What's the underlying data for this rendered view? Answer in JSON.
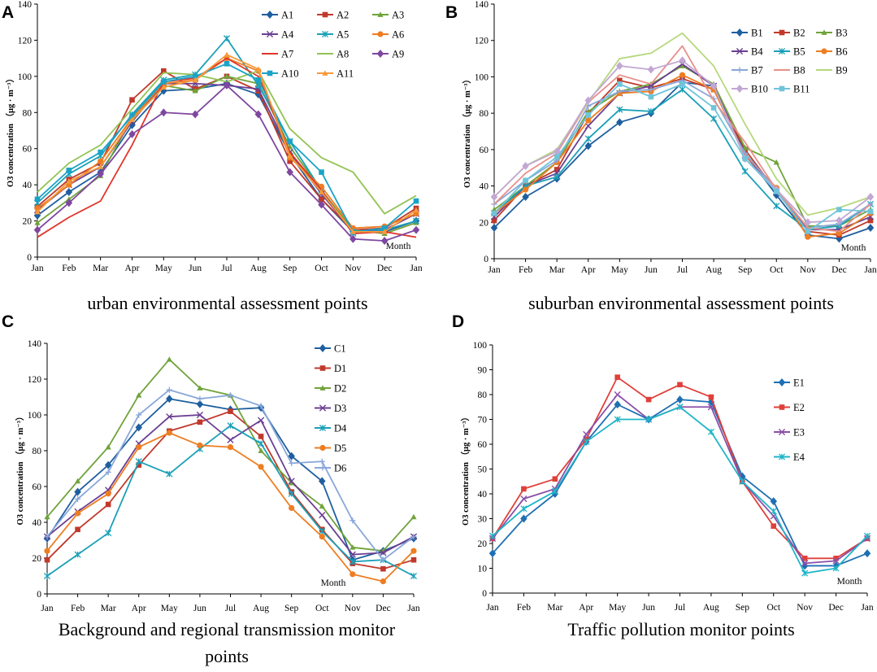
{
  "figure": {
    "background": "#ffffff",
    "axis_color": "#000000",
    "panels": [
      "A",
      "B",
      "C",
      "D"
    ]
  },
  "chart_data": [
    {
      "panel": "A",
      "type": "line",
      "title": "urban environmental assessment points",
      "ylabel": "O3 concentration （μg · m⁻³）",
      "xlabel": "Month",
      "categories": [
        "Jan",
        "Feb",
        "Mar",
        "Apr",
        "May",
        "Jun",
        "Jul",
        "Aug",
        "Sep",
        "Oct",
        "Nov",
        "Dec",
        "Jan"
      ],
      "ylim": [
        0,
        140
      ],
      "yticks": [
        0,
        20,
        40,
        60,
        80,
        100,
        120,
        140
      ],
      "legend_columns": 3,
      "legend_position": "top-right",
      "series": [
        {
          "name": "A1",
          "color": "#1f5fa0",
          "marker": "diamond",
          "values": [
            23,
            36,
            47,
            73,
            92,
            93,
            96,
            90,
            57,
            32,
            14,
            14,
            20
          ]
        },
        {
          "name": "A2",
          "color": "#c0392b",
          "marker": "square",
          "values": [
            28,
            43,
            52,
            87,
            103,
            93,
            100,
            92,
            53,
            32,
            15,
            16,
            27
          ]
        },
        {
          "name": "A3",
          "color": "#70a33a",
          "marker": "triangle",
          "values": [
            19,
            32,
            45,
            77,
            95,
            92,
            100,
            96,
            61,
            37,
            15,
            13,
            19
          ]
        },
        {
          "name": "A4",
          "color": "#6b3f92",
          "marker": "x",
          "values": [
            26,
            40,
            50,
            75,
            96,
            96,
            95,
            93,
            58,
            35,
            14,
            15,
            24
          ]
        },
        {
          "name": "A5",
          "color": "#1aa0b8",
          "marker": "star",
          "values": [
            30,
            46,
            56,
            79,
            98,
            101,
            121,
            95,
            64,
            37,
            13,
            15,
            20
          ]
        },
        {
          "name": "A6",
          "color": "#ee7d22",
          "marker": "circle",
          "values": [
            27,
            40,
            53,
            77,
            96,
            98,
            110,
            103,
            55,
            39,
            16,
            17,
            24
          ]
        },
        {
          "name": "A7",
          "color": "#e0352b",
          "marker": "none",
          "values": [
            11,
            22,
            31,
            62,
            97,
            99,
            110,
            100,
            58,
            37,
            13,
            14,
            11
          ]
        },
        {
          "name": "A8",
          "color": "#92c353",
          "marker": "none",
          "values": [
            36,
            52,
            62,
            82,
            102,
            101,
            97,
            103,
            71,
            55,
            47,
            24,
            34
          ]
        },
        {
          "name": "A9",
          "color": "#7f47a0",
          "marker": "diamond",
          "values": [
            15,
            30,
            46,
            68,
            80,
            79,
            95,
            79,
            47,
            29,
            10,
            9,
            15
          ]
        },
        {
          "name": "A10",
          "color": "#1aa3c7",
          "marker": "square",
          "values": [
            32,
            48,
            58,
            78,
            97,
            100,
            107,
            98,
            64,
            47,
            14,
            16,
            31
          ]
        },
        {
          "name": "A11",
          "color": "#f79a3a",
          "marker": "triangle",
          "values": [
            25,
            42,
            50,
            76,
            94,
            98,
            112,
            104,
            56,
            36,
            14,
            14,
            26
          ]
        }
      ]
    },
    {
      "panel": "B",
      "type": "line",
      "title": "suburban environmental assessment points",
      "ylabel": "O3 concentration （μg · m⁻³）",
      "xlabel": "Month",
      "categories": [
        "Jan",
        "Feb",
        "Mar",
        "Apr",
        "May",
        "Jun",
        "Jul",
        "Aug",
        "Sep",
        "Oct",
        "Nov",
        "Dec",
        "Jan"
      ],
      "ylim": [
        0,
        140
      ],
      "yticks": [
        0,
        20,
        40,
        60,
        80,
        100,
        120,
        140
      ],
      "legend_columns": 3,
      "legend_position": "top-left",
      "series": [
        {
          "name": "B1",
          "color": "#1f5fa0",
          "marker": "diamond",
          "values": [
            17,
            34,
            44,
            62,
            75,
            80,
            97,
            95,
            58,
            35,
            13,
            11,
            17
          ]
        },
        {
          "name": "B2",
          "color": "#c0392b",
          "marker": "square",
          "values": [
            21,
            40,
            49,
            80,
            98,
            94,
            99,
            93,
            60,
            37,
            15,
            13,
            21
          ]
        },
        {
          "name": "B3",
          "color": "#70a33a",
          "marker": "triangle",
          "values": [
            27,
            40,
            53,
            81,
            92,
            96,
            106,
            96,
            61,
            53,
            18,
            18,
            27
          ]
        },
        {
          "name": "B4",
          "color": "#6b3f92",
          "marker": "x",
          "values": [
            23,
            40,
            47,
            73,
            91,
            95,
            107,
            95,
            57,
            37,
            16,
            16,
            23
          ]
        },
        {
          "name": "B5",
          "color": "#1aa0b8",
          "marker": "star",
          "values": [
            25,
            40,
            45,
            66,
            82,
            81,
            93,
            77,
            48,
            29,
            16,
            18,
            30
          ]
        },
        {
          "name": "B6",
          "color": "#ee7d22",
          "marker": "circle",
          "values": [
            25,
            38,
            53,
            76,
            91,
            92,
            101,
            93,
            57,
            39,
            12,
            14,
            25
          ]
        },
        {
          "name": "B7",
          "color": "#89a7da",
          "marker": "plus",
          "values": [
            30,
            43,
            54,
            84,
            92,
            93,
            98,
            88,
            58,
            38,
            17,
            19,
            30
          ]
        },
        {
          "name": "B8",
          "color": "#e8908a",
          "marker": "none",
          "values": [
            30,
            47,
            58,
            86,
            101,
            96,
            117,
            87,
            64,
            38,
            17,
            15,
            30
          ]
        },
        {
          "name": "B9",
          "color": "#b6d87e",
          "marker": "none",
          "values": [
            34,
            51,
            60,
            86,
            110,
            113,
            124,
            106,
            74,
            44,
            24,
            28,
            34
          ]
        },
        {
          "name": "B10",
          "color": "#c2a7d3",
          "marker": "diamond",
          "values": [
            34,
            51,
            59,
            87,
            106,
            104,
            109,
            95,
            55,
            38,
            20,
            21,
            34
          ]
        },
        {
          "name": "B11",
          "color": "#6fc4da",
          "marker": "square",
          "values": [
            25,
            43,
            56,
            79,
            96,
            89,
            96,
            83,
            55,
            37,
            15,
            27,
            26
          ]
        }
      ]
    },
    {
      "panel": "C",
      "type": "line",
      "title": "Background and regional transmission monitor points",
      "ylabel": "O3 concentration （μg · m⁻³）",
      "xlabel": "Month",
      "categories": [
        "Jan",
        "Feb",
        "Mar",
        "Apr",
        "May",
        "Jun",
        "Jul",
        "Aug",
        "Sep",
        "Oct",
        "Nov",
        "Dec",
        "Jan"
      ],
      "ylim": [
        0,
        140
      ],
      "yticks": [
        0,
        20,
        40,
        60,
        80,
        100,
        120,
        140
      ],
      "legend_columns": 1,
      "legend_position": "top-right",
      "series": [
        {
          "name": "C1",
          "color": "#1f5fa0",
          "marker": "diamond",
          "values": [
            31,
            57,
            72,
            93,
            109,
            106,
            103,
            104,
            77,
            63,
            19,
            24,
            31
          ]
        },
        {
          "name": "D1",
          "color": "#c0392b",
          "marker": "square",
          "values": [
            19,
            36,
            50,
            72,
            91,
            96,
            102,
            88,
            57,
            36,
            17,
            14,
            19
          ]
        },
        {
          "name": "D2",
          "color": "#70a33a",
          "marker": "triangle",
          "values": [
            43,
            63,
            82,
            111,
            131,
            115,
            111,
            80,
            62,
            49,
            26,
            24,
            43
          ]
        },
        {
          "name": "D3",
          "color": "#6b3f92",
          "marker": "x",
          "values": [
            32,
            46,
            58,
            84,
            99,
            100,
            86,
            97,
            63,
            44,
            22,
            23,
            32
          ]
        },
        {
          "name": "D4",
          "color": "#1aa0b8",
          "marker": "star",
          "values": [
            10,
            22,
            34,
            74,
            67,
            81,
            94,
            84,
            56,
            35,
            18,
            19,
            10
          ]
        },
        {
          "name": "D5",
          "color": "#ee7d22",
          "marker": "circle",
          "values": [
            24,
            45,
            56,
            82,
            90,
            83,
            82,
            71,
            48,
            32,
            11,
            7,
            24
          ]
        },
        {
          "name": "D6",
          "color": "#89a7da",
          "marker": "plus",
          "values": [
            32,
            53,
            68,
            100,
            114,
            109,
            111,
            105,
            73,
            74,
            41,
            19,
            32
          ]
        }
      ]
    },
    {
      "panel": "D",
      "type": "line",
      "title": "Traffic pollution monitor points",
      "ylabel": "O3 concentration （μg · m⁻³）",
      "xlabel": "Month",
      "categories": [
        "Jan",
        "Feb",
        "Mar",
        "Apr",
        "May",
        "Jun",
        "Jul",
        "Aug",
        "Sep",
        "Oct",
        "Nov",
        "Dec",
        "Jan"
      ],
      "ylim": [
        0,
        100
      ],
      "yticks": [
        0,
        10,
        20,
        30,
        40,
        50,
        60,
        70,
        80,
        90,
        100
      ],
      "legend_columns": 1,
      "legend_position": "right",
      "series": [
        {
          "name": "E1",
          "color": "#1f6fb4",
          "marker": "diamond",
          "values": [
            16,
            30,
            40,
            61,
            76,
            70,
            78,
            77,
            47,
            37,
            11,
            11,
            16
          ]
        },
        {
          "name": "E2",
          "color": "#e0403a",
          "marker": "square",
          "values": [
            22,
            42,
            46,
            62,
            87,
            78,
            84,
            79,
            45,
            27,
            14,
            14,
            22
          ]
        },
        {
          "name": "E3",
          "color": "#8a4fa8",
          "marker": "x",
          "values": [
            22,
            38,
            42,
            64,
            80,
            70,
            75,
            75,
            45,
            31,
            12,
            13,
            22
          ]
        },
        {
          "name": "E4",
          "color": "#20b5c8",
          "marker": "star",
          "values": [
            23,
            34,
            41,
            61,
            70,
            70,
            75,
            65,
            45,
            33,
            8,
            10,
            23
          ]
        }
      ]
    }
  ]
}
